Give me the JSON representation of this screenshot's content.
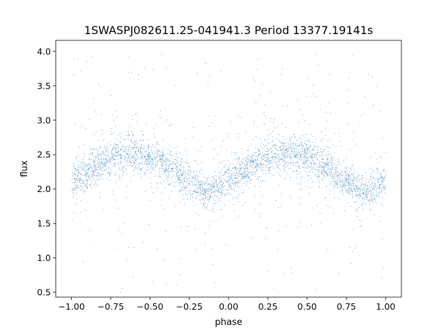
{
  "chart_data": {
    "type": "scatter",
    "title": "1SWASPJ082611.25-041941.3 Period 13377.19141s",
    "xlabel": "phase",
    "ylabel": "flux",
    "xlim": [
      -1.1,
      1.1
    ],
    "ylim": [
      0.43,
      4.16
    ],
    "x_ticks": [
      -1.0,
      -0.75,
      -0.5,
      -0.25,
      0.0,
      0.25,
      0.5,
      0.75,
      1.0
    ],
    "x_tick_labels": [
      "−1.00",
      "−0.75",
      "−0.50",
      "−0.25",
      "0.00",
      "0.25",
      "0.50",
      "0.75",
      "1.00"
    ],
    "y_ticks": [
      0.5,
      1.0,
      1.5,
      2.0,
      2.5,
      3.0,
      3.5,
      4.0
    ],
    "y_tick_labels": [
      "0.5",
      "1.0",
      "1.5",
      "2.0",
      "2.5",
      "3.0",
      "3.5",
      "4.0"
    ],
    "grid": false,
    "marker_color": "#1f77b4",
    "series": [
      {
        "trend": {
          "x": [
            -1.0,
            -0.875,
            -0.75,
            -0.625,
            -0.5,
            -0.375,
            -0.25,
            -0.125,
            0.0,
            0.125,
            0.25,
            0.375,
            0.5,
            0.625,
            0.75,
            0.875,
            1.0
          ],
          "y": [
            2.12,
            2.3,
            2.47,
            2.53,
            2.47,
            2.3,
            2.1,
            1.97,
            2.12,
            2.3,
            2.47,
            2.53,
            2.47,
            2.3,
            2.1,
            1.97,
            2.12
          ]
        },
        "core_scatter": 0.13,
        "outlier_range": [
          0.5,
          4.0
        ]
      }
    ]
  }
}
